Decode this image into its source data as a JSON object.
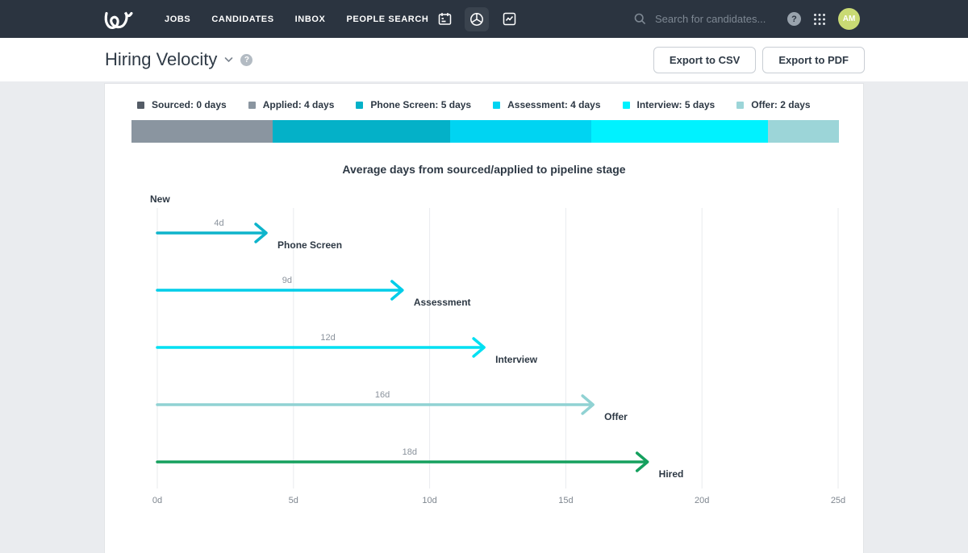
{
  "nav": {
    "items": [
      "JOBS",
      "CANDIDATES",
      "INBOX",
      "PEOPLE SEARCH"
    ],
    "search_placeholder": "Search for candidates...",
    "help_glyph": "?",
    "avatar_initials": "AM",
    "colors": {
      "bar_bg": "#2b3440",
      "active_icon_bg": "#3a434e",
      "avatar_bg": "#c9da74"
    }
  },
  "header": {
    "title": "Hiring Velocity",
    "help_glyph": "?",
    "buttons": {
      "export_csv": "Export to CSV",
      "export_pdf": "Export to PDF"
    }
  },
  "legend": {
    "items": [
      {
        "label": "Sourced: 0 days",
        "color": "#545c66"
      },
      {
        "label": "Applied: 4 days",
        "color": "#8a95a0"
      },
      {
        "label": "Phone Screen: 5 days",
        "color": "#04b1c8"
      },
      {
        "label": "Assessment: 4 days",
        "color": "#00d4f2"
      },
      {
        "label": "Interview: 5 days",
        "color": "#00f2ff"
      },
      {
        "label": "Offer: 2 days",
        "color": "#9cd5d8"
      }
    ]
  },
  "stacked_bar": {
    "total_days": 20,
    "segments": [
      {
        "stage": "Applied",
        "days": 4,
        "color": "#8a95a0"
      },
      {
        "stage": "Phone Screen",
        "days": 5,
        "color": "#04b1c8"
      },
      {
        "stage": "Assessment",
        "days": 4,
        "color": "#00d4f2"
      },
      {
        "stage": "Interview",
        "days": 5,
        "color": "#00f2ff"
      },
      {
        "stage": "Offer",
        "days": 2,
        "color": "#9cd5d8"
      }
    ]
  },
  "chart_data": {
    "type": "arrow-timeline",
    "title": "Average days from sourced/applied to pipeline stage",
    "origin_label": "New",
    "grid": true,
    "x_axis": {
      "unit": "days",
      "max": 25,
      "ticks": [
        {
          "label": "0d",
          "value": 0
        },
        {
          "label": "5d",
          "value": 5
        },
        {
          "label": "10d",
          "value": 10
        },
        {
          "label": "15d",
          "value": 15
        },
        {
          "label": "20d",
          "value": 20
        },
        {
          "label": "25d",
          "value": 25
        }
      ]
    },
    "arrows": [
      {
        "stage": "Phone Screen",
        "days": 4,
        "label": "4d",
        "color": "#0eb4cb"
      },
      {
        "stage": "Assessment",
        "days": 9,
        "label": "9d",
        "color": "#00cde9"
      },
      {
        "stage": "Interview",
        "days": 12,
        "label": "12d",
        "color": "#00e0f2"
      },
      {
        "stage": "Offer",
        "days": 16,
        "label": "16d",
        "color": "#90d2d3"
      },
      {
        "stage": "Hired",
        "days": 18,
        "label": "18d",
        "color": "#15a05e"
      }
    ]
  }
}
